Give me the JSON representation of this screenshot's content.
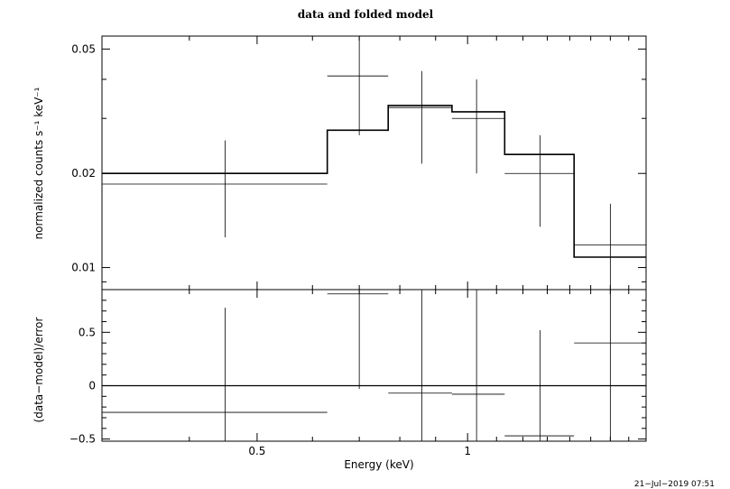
{
  "chart_data": {
    "type": "xspec_plot",
    "title": "data and folded model",
    "timestamp": "21−Jul−2019 07:51",
    "xlabel": "Energy (keV)",
    "x_scale": "log",
    "xlim": [
      0.3,
      1.8
    ],
    "x_ticks": [
      {
        "value": 0.5,
        "label": "0.5"
      },
      {
        "value": 1,
        "label": "1"
      }
    ],
    "panels": [
      {
        "name": "data-and-model",
        "ylabel": "normalized counts s⁻¹ keV⁻¹",
        "y_scale": "log",
        "ylim": [
          0.0085,
          0.055
        ],
        "y_ticks": [
          {
            "value": 0.01,
            "label": "0.01"
          },
          {
            "value": 0.02,
            "label": "0.02"
          },
          {
            "value": 0.05,
            "label": "0.05"
          }
        ],
        "data": [
          {
            "x_lo": 0.3,
            "x_hi": 0.63,
            "x": 0.45,
            "y": 0.0185,
            "y_lo": 0.0125,
            "y_hi": 0.0255
          },
          {
            "x_lo": 0.63,
            "x_hi": 0.77,
            "x": 0.7,
            "y": 0.041,
            "y_lo": 0.0265,
            "y_hi": 0.056
          },
          {
            "x_lo": 0.77,
            "x_hi": 0.95,
            "x": 0.86,
            "y": 0.0325,
            "y_lo": 0.0215,
            "y_hi": 0.0425
          },
          {
            "x_lo": 0.95,
            "x_hi": 1.13,
            "x": 1.03,
            "y": 0.03,
            "y_lo": 0.02,
            "y_hi": 0.04
          },
          {
            "x_lo": 1.13,
            "x_hi": 1.42,
            "x": 1.27,
            "y": 0.02,
            "y_lo": 0.0135,
            "y_hi": 0.0265
          },
          {
            "x_lo": 1.42,
            "x_hi": 1.8,
            "x": 1.6,
            "y": 0.0118,
            "y_lo": 0.005,
            "y_hi": 0.016
          }
        ],
        "model": [
          {
            "x_lo": 0.3,
            "x_hi": 0.63,
            "y": 0.02
          },
          {
            "x_lo": 0.63,
            "x_hi": 0.77,
            "y": 0.0275
          },
          {
            "x_lo": 0.77,
            "x_hi": 0.95,
            "y": 0.033
          },
          {
            "x_lo": 0.95,
            "x_hi": 1.13,
            "y": 0.0315
          },
          {
            "x_lo": 1.13,
            "x_hi": 1.42,
            "y": 0.023
          },
          {
            "x_lo": 1.42,
            "x_hi": 1.8,
            "y": 0.0108
          }
        ]
      },
      {
        "name": "residuals",
        "ylabel": "(data−model)/error",
        "y_scale": "linear",
        "ylim": [
          -0.52,
          0.9
        ],
        "y_ticks": [
          {
            "value": -0.5,
            "label": "−0.5"
          },
          {
            "value": 0,
            "label": "0"
          },
          {
            "value": 0.5,
            "label": "0.5"
          }
        ],
        "zero_line": 0,
        "data": [
          {
            "x_lo": 0.3,
            "x_hi": 0.63,
            "x": 0.45,
            "y": -0.25,
            "y_lo": -0.75,
            "y_hi": 0.73
          },
          {
            "x_lo": 0.63,
            "x_hi": 0.77,
            "x": 0.7,
            "y": 0.86,
            "y_lo": -0.03,
            "y_hi": 1.7
          },
          {
            "x_lo": 0.77,
            "x_hi": 0.95,
            "x": 0.86,
            "y": -0.07,
            "y_lo": -0.9,
            "y_hi": 0.92
          },
          {
            "x_lo": 0.95,
            "x_hi": 1.13,
            "x": 1.03,
            "y": -0.08,
            "y_lo": -0.9,
            "y_hi": 0.91
          },
          {
            "x_lo": 1.13,
            "x_hi": 1.42,
            "x": 1.27,
            "y": -0.47,
            "y_lo": -1.0,
            "y_hi": 0.52
          },
          {
            "x_lo": 1.42,
            "x_hi": 1.8,
            "x": 1.6,
            "y": 0.4,
            "y_lo": -0.95,
            "y_hi": 1.0
          }
        ]
      }
    ]
  }
}
